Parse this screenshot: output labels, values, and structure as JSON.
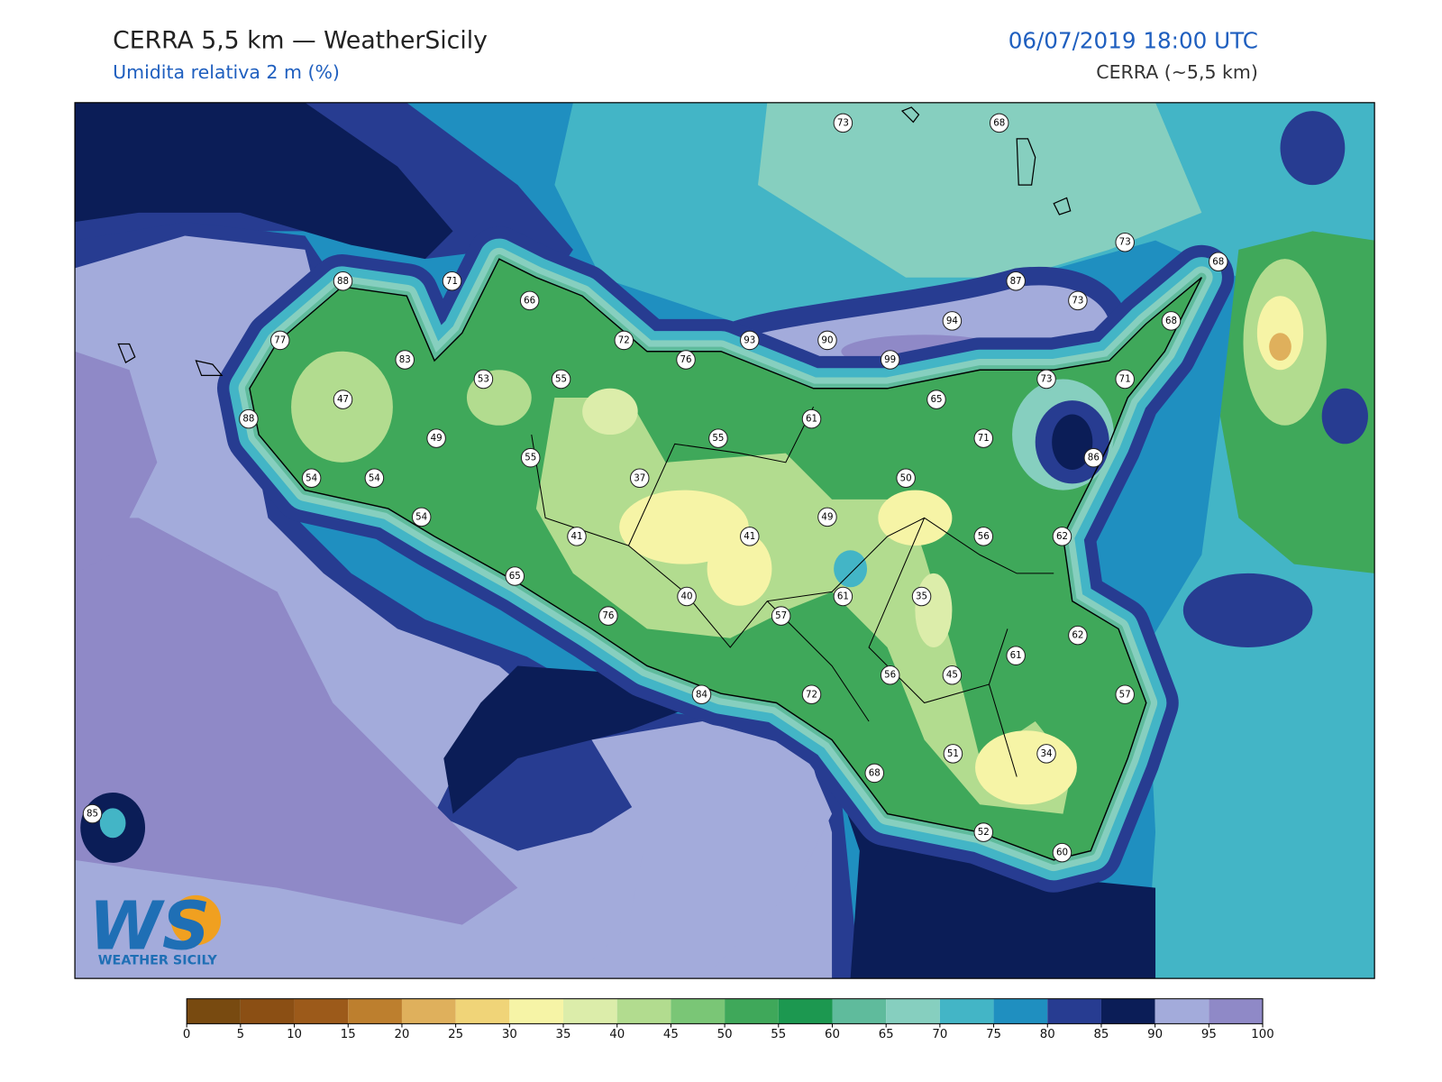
{
  "header": {
    "title": "CERRA 5,5 km — WeatherSicily",
    "subtitle": "Umidita relativa 2 m (%)",
    "datetime": "06/07/2019 18:00 UTC",
    "model": "CERRA (~5,5 km)"
  },
  "map": {
    "stations": [
      73,
      68,
      73,
      68,
      87,
      73,
      88,
      71,
      66,
      94,
      68,
      77,
      72,
      93,
      90,
      83,
      76,
      99,
      53,
      55,
      73,
      71,
      47,
      65,
      88,
      61,
      49,
      55,
      71,
      55,
      86,
      54,
      54,
      37,
      50,
      54,
      49,
      41,
      41,
      56,
      62,
      65,
      61,
      40,
      35,
      76,
      57,
      62,
      61,
      56,
      45,
      84,
      72,
      57,
      51,
      34,
      68,
      85,
      52,
      60
    ]
  },
  "colorbar": {
    "ticks": [
      0,
      5,
      10,
      15,
      20,
      25,
      30,
      35,
      40,
      45,
      50,
      55,
      60,
      65,
      70,
      75,
      80,
      85,
      90,
      95,
      100
    ],
    "colors": [
      "#784a10",
      "#8b4f14",
      "#9c5a1a",
      "#bd7f2e",
      "#dfb05c",
      "#f0d478",
      "#f6f4a6",
      "#dcedaa",
      "#b2dc8f",
      "#7ac676",
      "#3fa85a",
      "#1c9850",
      "#5fbb9c",
      "#86cfbf",
      "#43b5c6",
      "#1f8fc0",
      "#273c91",
      "#0b1d57",
      "#a3abdb",
      "#8f89c7"
    ]
  },
  "logo": {
    "mark": "WS",
    "name": "WEATHER SICILY"
  }
}
